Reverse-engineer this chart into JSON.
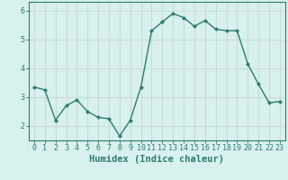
{
  "x": [
    0,
    1,
    2,
    3,
    4,
    5,
    6,
    7,
    8,
    9,
    10,
    11,
    12,
    13,
    14,
    15,
    16,
    17,
    18,
    19,
    20,
    21,
    22,
    23
  ],
  "y": [
    3.35,
    3.25,
    2.2,
    2.7,
    2.9,
    2.5,
    2.3,
    2.25,
    1.65,
    2.2,
    3.35,
    5.3,
    5.6,
    5.9,
    5.75,
    5.45,
    5.65,
    5.35,
    5.3,
    5.3,
    4.15,
    3.45,
    2.8,
    2.85
  ],
  "title": "",
  "xlabel": "Humidex (Indice chaleur)",
  "ylabel": "",
  "xlim": [
    -0.5,
    23.5
  ],
  "ylim": [
    1.5,
    6.3
  ],
  "yticks": [
    2,
    3,
    4,
    5,
    6
  ],
  "xticks": [
    0,
    1,
    2,
    3,
    4,
    5,
    6,
    7,
    8,
    9,
    10,
    11,
    12,
    13,
    14,
    15,
    16,
    17,
    18,
    19,
    20,
    21,
    22,
    23
  ],
  "line_color": "#2d7d6e",
  "marker": "D",
  "marker_size": 2.0,
  "bg_color": "#d8f0ee",
  "grid_color": "#c8ddd8",
  "axis_color": "#2d7d6e",
  "xlabel_fontsize": 7.5,
  "tick_fontsize": 6.0,
  "line_width": 1.0
}
